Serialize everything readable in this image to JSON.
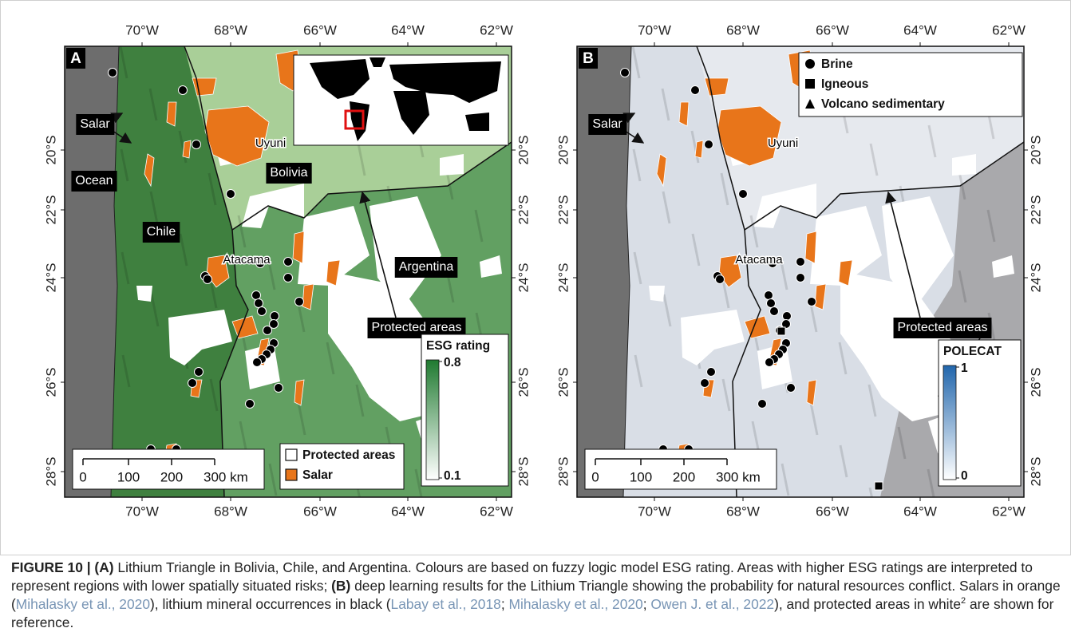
{
  "figure": {
    "panels": [
      {
        "label": "A",
        "lon_ticks": [
          "70°W",
          "68°W",
          "66°W",
          "64°W",
          "62°W"
        ],
        "lat_ticks": [
          "20°S",
          "22°S",
          "24°S",
          "26°S",
          "28°S"
        ],
        "labels": {
          "salar": "Salar",
          "ocean": "Ocean",
          "chile": "Chile",
          "bolivia": "Bolivia",
          "argentina": "Argentina",
          "uyuni": "Uyuni",
          "atacama": "Atacama",
          "protected": "Protected areas"
        },
        "scale_bar": [
          "0",
          "100",
          "200",
          "300 km"
        ],
        "legend": [
          "Protected areas",
          "Salar"
        ],
        "colorbar": {
          "title": "ESG rating",
          "max": 0.8,
          "min": 0.1
        }
      },
      {
        "label": "B",
        "lon_ticks": [
          "70°W",
          "68°W",
          "66°W",
          "64°W",
          "62°W"
        ],
        "lat_ticks": [
          "20°S",
          "22°S",
          "24°S",
          "26°S",
          "28°S"
        ],
        "labels": {
          "salar": "Salar",
          "uyuni": "Uyuni",
          "atacama": "Atacama",
          "protected": "Protected areas"
        },
        "scale_bar": [
          "0",
          "100",
          "200",
          "300 km"
        ],
        "legend": [
          "Brine",
          "Igneous",
          "Volcano sedimentary"
        ],
        "colorbar": {
          "title": "POLECAT",
          "max": 1,
          "min": 0
        }
      }
    ]
  },
  "caption": {
    "figure_label": "FIGURE 10 |",
    "part_a": "(A)",
    "text_1": "Lithium Triangle in Bolivia, Chile, and Argentina. Colours are based on fuzzy logic model ESG rating. Areas with higher ESG ratings are interpreted to represent regions with lower spatially situated risks;",
    "part_b": "(B)",
    "text_2": "deep learning results for the Lithium Triangle showing the probability for natural resources conflict. Salars in orange (",
    "ref_1": "Mihalasky et al., 2020",
    "text_3": "), lithium mineral occurrences in black (",
    "ref_2": "Labay et al., 2018",
    "text_4": ";",
    "ref_3": "Mihalasky et al., 2020",
    "text_5": ";",
    "ref_4": "Owen J. et al., 2022",
    "text_6": "), and protected areas in white",
    "footnote": "2",
    "text_7": "are shown for reference."
  }
}
